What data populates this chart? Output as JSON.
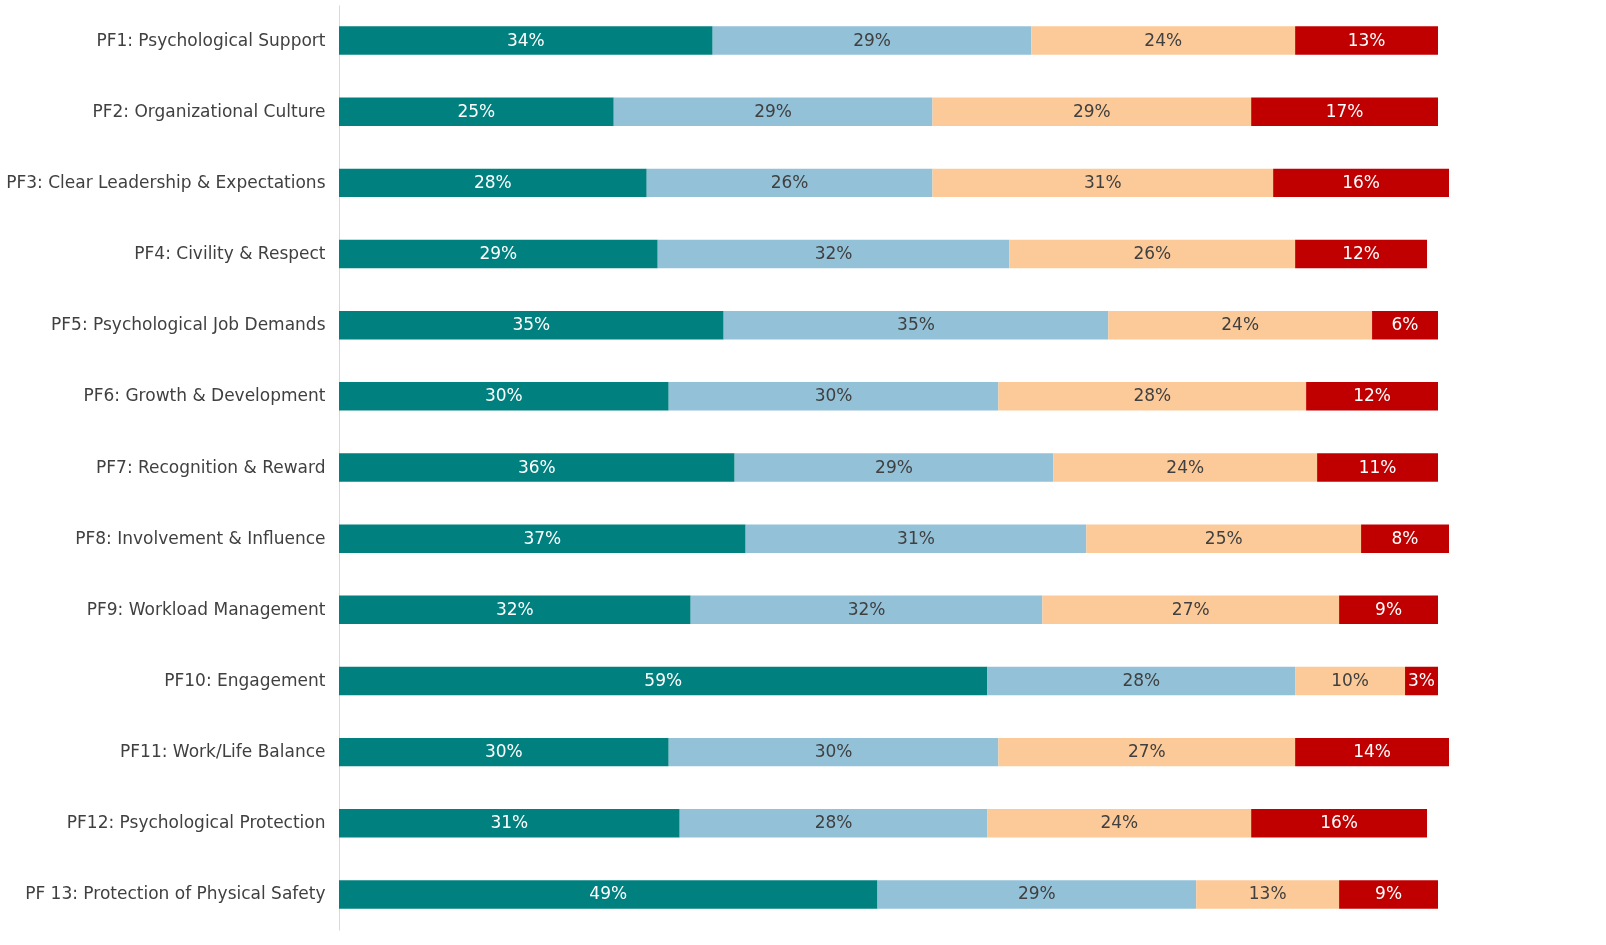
{
  "chart_data": {
    "type": "bar",
    "orientation": "horizontal",
    "stacked": true,
    "data_labels": false,
    "categories": [
      "PF1: Psychological Support",
      "PF2: Organizational Culture",
      "PF3: Clear Leadership & Expectations",
      "PF4: Civility & Respect",
      "PF5: Psychological Job Demands",
      "PF6: Growth & Development",
      "PF7: Recognition & Reward",
      "PF8: Involvement & Influence",
      "PF9: Workload Management",
      "PF10: Engagement",
      "PF11: Work/Life Balance",
      "PF12: Psychological Protection",
      "PF 13: Protection of Physical Safety"
    ],
    "series": [
      {
        "color": "#00807f",
        "values": [
          34,
          25,
          28,
          29,
          35,
          30,
          36,
          37,
          32,
          59,
          30,
          31,
          49
        ],
        "value_labels": [
          "34%",
          "25%",
          "28%",
          "29%",
          "35%",
          "30%",
          "36%",
          "37%",
          "32%",
          "59%",
          "30%",
          "31%",
          "49%"
        ]
      },
      {
        "color": "#92c1d8",
        "values": [
          29,
          29,
          26,
          32,
          35,
          30,
          29,
          31,
          32,
          28,
          30,
          28,
          29
        ],
        "value_labels": [
          "29%",
          "29%",
          "26%",
          "32%",
          "35%",
          "30%",
          "29%",
          "31%",
          "32%",
          "28%",
          "30%",
          "28%",
          "29%"
        ]
      },
      {
        "color": "#fcc998",
        "values": [
          24,
          29,
          31,
          26,
          24,
          28,
          24,
          25,
          27,
          10,
          27,
          24,
          13
        ],
        "value_labels": [
          "24%",
          "29%",
          "31%",
          "26%",
          "24%",
          "28%",
          "24%",
          "25%",
          "27%",
          "10%",
          "27%",
          "24%",
          "13%"
        ]
      },
      {
        "color": "#c00000",
        "values": [
          13,
          17,
          16,
          12,
          6,
          12,
          11,
          8,
          9,
          3,
          14,
          16,
          9
        ],
        "value_labels": [
          "13%",
          "17%",
          "16%",
          "12%",
          "6%",
          "12%",
          "11%",
          "8%",
          "9%",
          "3%",
          "14%",
          "16%",
          "9%"
        ]
      }
    ]
  }
}
